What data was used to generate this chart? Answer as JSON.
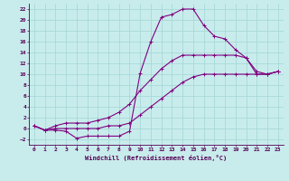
{
  "xlabel": "Windchill (Refroidissement éolien,°C)",
  "bg_color": "#c8ecec",
  "grid_color": "#a8d8d8",
  "line_color": "#800080",
  "xlim": [
    -0.5,
    23.5
  ],
  "ylim": [
    -3,
    23
  ],
  "xticks": [
    0,
    1,
    2,
    3,
    4,
    5,
    6,
    7,
    8,
    9,
    10,
    11,
    12,
    13,
    14,
    15,
    16,
    17,
    18,
    19,
    20,
    21,
    22,
    23
  ],
  "yticks": [
    -2,
    0,
    2,
    4,
    6,
    8,
    10,
    12,
    14,
    16,
    18,
    20,
    22
  ],
  "line1_x": [
    0,
    1,
    2,
    3,
    4,
    5,
    6,
    7,
    8,
    9,
    10,
    11,
    12,
    13,
    14,
    15,
    16,
    17,
    18,
    19,
    20,
    21,
    22,
    23
  ],
  "line1_y": [
    0.5,
    -0.3,
    -0.3,
    -0.5,
    -1.8,
    -1.4,
    -1.4,
    -1.4,
    -1.4,
    -0.5,
    10.2,
    16.0,
    20.5,
    21.0,
    22.0,
    22.0,
    19.0,
    17.0,
    16.5,
    14.5,
    13.0,
    10.0,
    10.0,
    10.5
  ],
  "line2_x": [
    0,
    1,
    2,
    3,
    4,
    5,
    6,
    7,
    8,
    9,
    10,
    11,
    12,
    13,
    14,
    15,
    16,
    17,
    18,
    19,
    20,
    21,
    22,
    23
  ],
  "line2_y": [
    0.5,
    -0.3,
    0.5,
    1.0,
    1.0,
    1.0,
    1.5,
    2.0,
    3.0,
    4.5,
    7.0,
    9.0,
    11.0,
    12.5,
    13.5,
    13.5,
    13.5,
    13.5,
    13.5,
    13.5,
    13.0,
    10.5,
    10.0,
    10.5
  ],
  "line3_x": [
    0,
    1,
    2,
    3,
    4,
    5,
    6,
    7,
    8,
    9,
    10,
    11,
    12,
    13,
    14,
    15,
    16,
    17,
    18,
    19,
    20,
    21,
    22,
    23
  ],
  "line3_y": [
    0.5,
    -0.3,
    0.0,
    0.0,
    0.0,
    0.0,
    0.0,
    0.5,
    0.5,
    1.0,
    2.5,
    4.0,
    5.5,
    7.0,
    8.5,
    9.5,
    10.0,
    10.0,
    10.0,
    10.0,
    10.0,
    10.0,
    10.0,
    10.5
  ],
  "marker_size": 2.5,
  "line_width": 0.8
}
